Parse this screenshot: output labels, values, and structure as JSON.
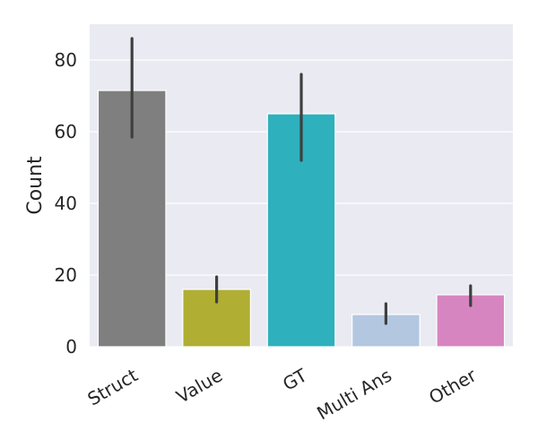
{
  "chart_data": {
    "type": "bar",
    "title": "",
    "xlabel": "",
    "ylabel": "Count",
    "ylim": [
      0,
      90
    ],
    "yticks": [
      0,
      20,
      40,
      60,
      80
    ],
    "grid": true,
    "categories": [
      "Struct",
      "Value",
      "GT",
      "Multi Ans",
      "Other"
    ],
    "values": [
      71.5,
      16,
      65,
      9,
      14.5
    ],
    "error_low": [
      58.5,
      12.5,
      52,
      6.5,
      11.5
    ],
    "error_high": [
      86,
      19.5,
      76,
      12,
      17
    ],
    "colors": [
      "#7f7f7f",
      "#b0ae33",
      "#2eb0bd",
      "#b3c7e1",
      "#d785c0"
    ],
    "errorbar_color": "#3f3f3f",
    "background_color": "#eaeaf2",
    "grid_color": "#ffffff"
  }
}
